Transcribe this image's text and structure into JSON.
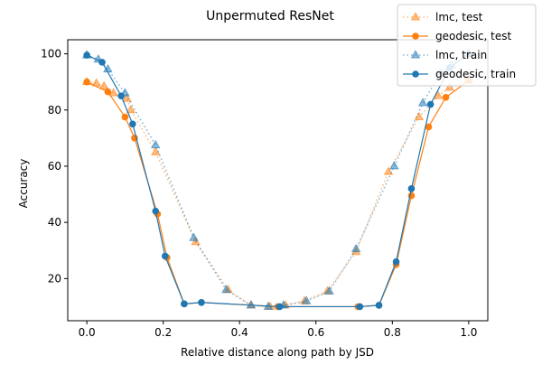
{
  "chart_data": {
    "type": "line",
    "title": "Unpermuted ResNet",
    "xlabel": "Relative distance along path by JSD",
    "ylabel": "Accuracy",
    "xlim": [
      -0.05,
      1.05
    ],
    "ylim": [
      5,
      105
    ],
    "xticks": [
      0.0,
      0.2,
      0.4,
      0.6,
      0.8,
      1.0
    ],
    "xtick_labels": [
      "0.0",
      "0.2",
      "0.4",
      "0.6",
      "0.8",
      "1.0"
    ],
    "yticks": [
      20,
      40,
      60,
      80,
      100
    ],
    "ytick_labels": [
      "20",
      "40",
      "60",
      "80",
      "100"
    ],
    "grid": false,
    "legend_position": "top-right",
    "series": [
      {
        "name": "lmc, test",
        "color": "#ff7f0e",
        "style": "dotted",
        "marker": "triangle",
        "x": [
          0.0,
          0.025,
          0.045,
          0.07,
          0.105,
          0.115,
          0.18,
          0.285,
          0.37,
          0.43,
          0.48,
          0.52,
          0.57,
          0.63,
          0.705,
          0.79,
          0.87,
          0.92,
          0.95,
          1.0
        ],
        "y": [
          90,
          89.5,
          88.5,
          86,
          84,
          80,
          65,
          33,
          16,
          10.5,
          10,
          10.5,
          12,
          15.5,
          29.5,
          58,
          77.5,
          85,
          88,
          90.5
        ]
      },
      {
        "name": "geodesic, test",
        "color": "#ff7f0e",
        "style": "solid",
        "marker": "circle",
        "x": [
          0.0,
          0.055,
          0.1,
          0.125,
          0.185,
          0.21,
          0.255,
          0.3,
          0.5,
          0.71,
          0.765,
          0.81,
          0.85,
          0.895,
          0.94,
          1.0
        ],
        "y": [
          90,
          86.5,
          77.5,
          70,
          43,
          27.5,
          11,
          11.5,
          10,
          10,
          10.5,
          25,
          49.5,
          74,
          84.5,
          90.5
        ]
      },
      {
        "name": "lmc, train",
        "color": "#1f77b4",
        "style": "dotted",
        "marker": "triangle",
        "x": [
          0.0,
          0.03,
          0.055,
          0.1,
          0.18,
          0.28,
          0.365,
          0.43,
          0.475,
          0.515,
          0.575,
          0.635,
          0.705,
          0.805,
          0.88,
          0.925,
          0.955,
          1.0
        ],
        "y": [
          99.5,
          98,
          94.5,
          86,
          67.5,
          34.5,
          16,
          10.5,
          10,
          10.5,
          12,
          15.5,
          30.5,
          60,
          82.5,
          93,
          96,
          100
        ]
      },
      {
        "name": "geodesic, train",
        "color": "#1f77b4",
        "style": "solid",
        "marker": "circle",
        "x": [
          0.0,
          0.04,
          0.09,
          0.12,
          0.18,
          0.205,
          0.255,
          0.3,
          0.505,
          0.715,
          0.765,
          0.81,
          0.85,
          0.9,
          0.95,
          1.0
        ],
        "y": [
          99.5,
          97,
          85,
          75,
          44,
          28,
          11,
          11.5,
          10,
          10,
          10.5,
          26,
          52,
          82,
          95,
          100
        ]
      }
    ]
  }
}
